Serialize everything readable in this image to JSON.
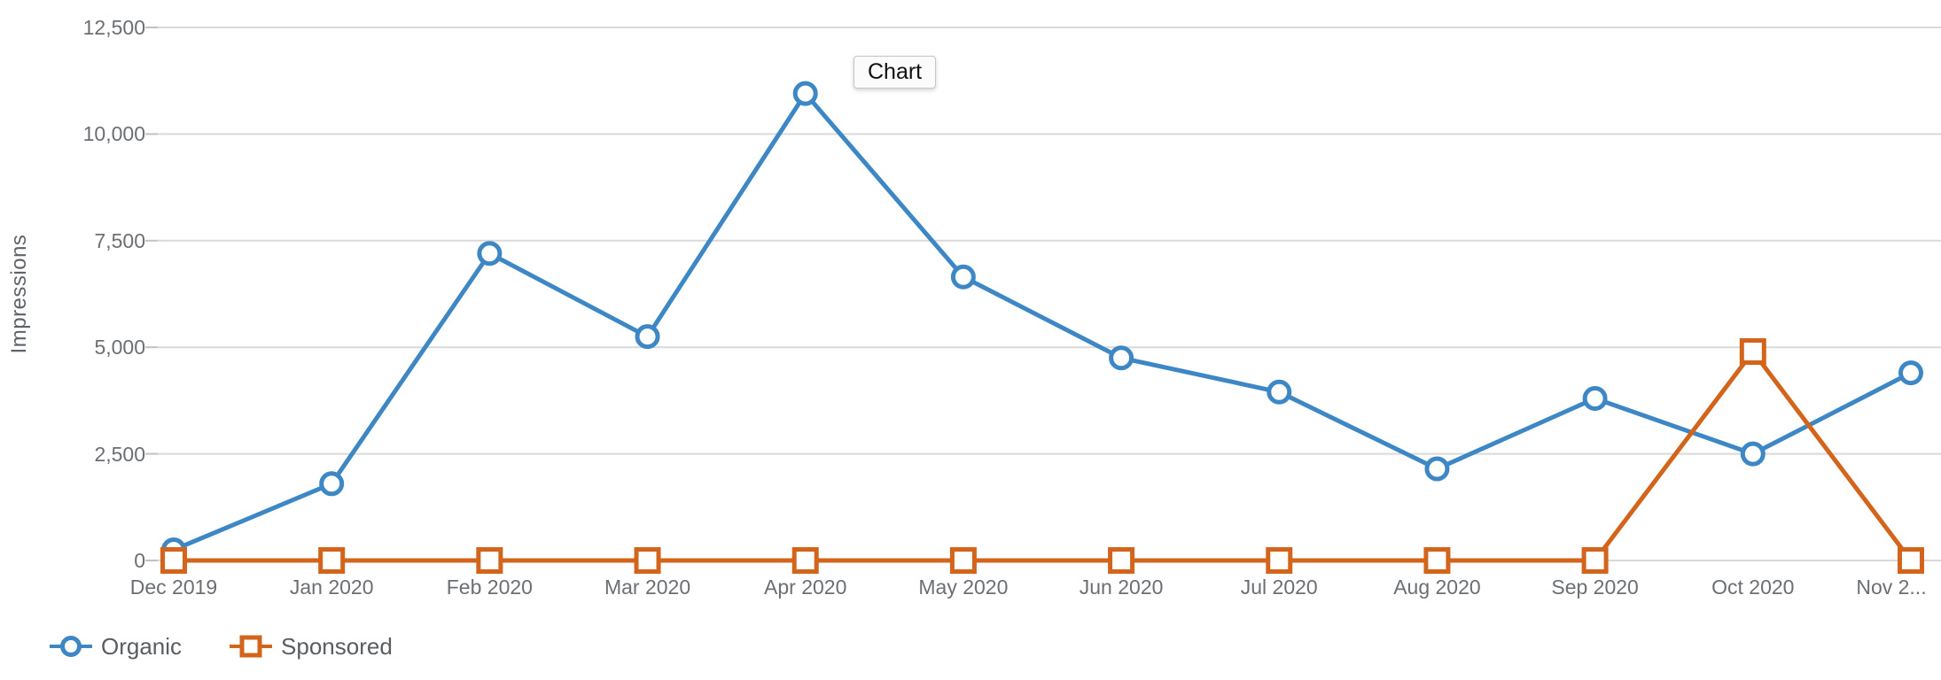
{
  "tooltip": {
    "text": "Chart"
  },
  "legend": [
    {
      "label": "Organic",
      "marker": "circle",
      "color": "#3d87c4"
    },
    {
      "label": "Sponsored",
      "marker": "square",
      "color": "#d2641b"
    }
  ],
  "colors": {
    "organic_blue": "#3d87c4",
    "sponsored_orange": "#d2641b",
    "gridline": "#d9d9d9",
    "tick": "#c2c2c2",
    "axis_text": "#6b6f73",
    "legend_text": "#595d61",
    "tooltip_bg": "#fbfbfb",
    "tooltip_border": "#c6c6c6"
  },
  "chart_data": {
    "type": "line",
    "title": "",
    "xlabel": "",
    "ylabel": "Impressions",
    "categories": [
      "Dec 2019",
      "Jan 2020",
      "Feb 2020",
      "Mar 2020",
      "Apr 2020",
      "May 2020",
      "Jun 2020",
      "Jul 2020",
      "Aug 2020",
      "Sep 2020",
      "Oct 2020",
      "Nov 2020"
    ],
    "categories_display": [
      "Dec 2019",
      "Jan 2020",
      "Feb 2020",
      "Mar 2020",
      "Apr 2020",
      "May 2020",
      "Jun 2020",
      "Jul 2020",
      "Aug 2020",
      "Sep 2020",
      "Oct 2020",
      "Nov 2..."
    ],
    "series": [
      {
        "name": "Organic",
        "marker": "circle",
        "color": "#3d87c4",
        "values": [
          250,
          1800,
          7200,
          5250,
          10950,
          6650,
          4750,
          3950,
          2150,
          3800,
          2500,
          4400
        ]
      },
      {
        "name": "Sponsored",
        "marker": "square",
        "color": "#d2641b",
        "values": [
          0,
          0,
          0,
          0,
          0,
          0,
          0,
          0,
          0,
          0,
          4900,
          0
        ]
      }
    ],
    "ylim": [
      0,
      12500
    ],
    "yticks": {
      "values": [
        0,
        2500,
        5000,
        7500,
        10000,
        12500
      ],
      "labels": [
        "0",
        "2,500",
        "5,000",
        "7,500",
        "10,000",
        "12,500"
      ]
    },
    "grid": true,
    "legend_position": "bottom-left"
  }
}
